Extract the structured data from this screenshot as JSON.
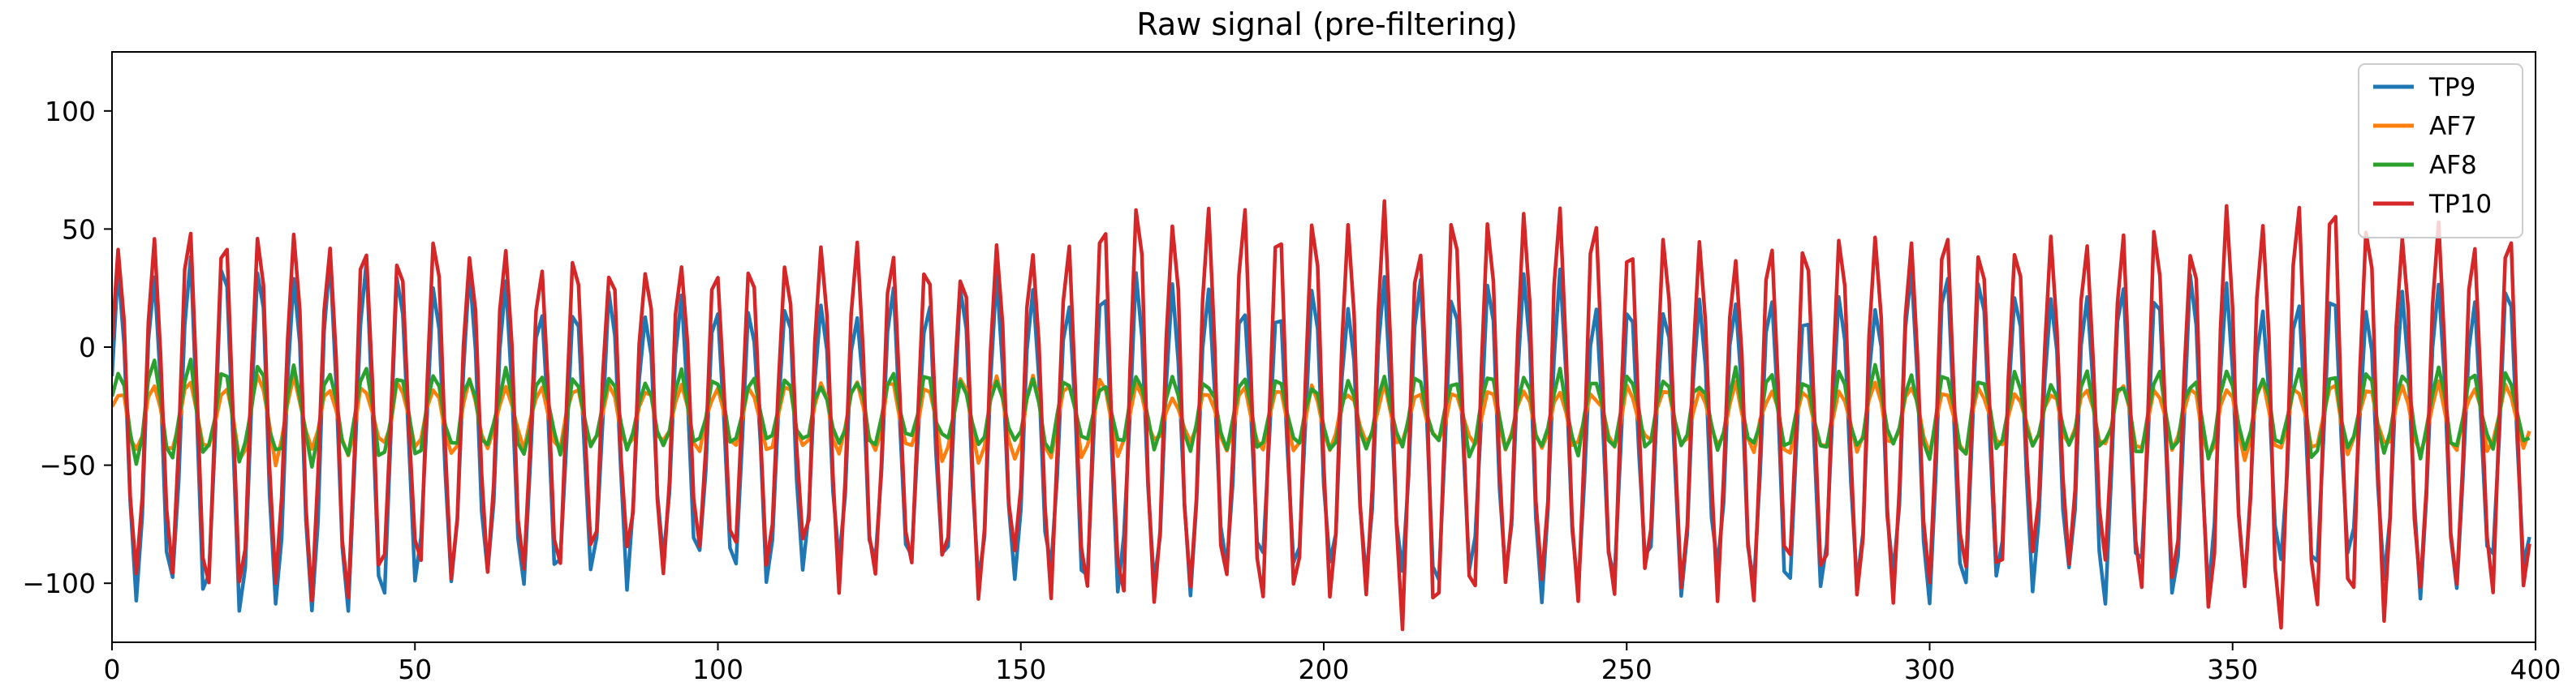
{
  "chart_data": {
    "type": "line",
    "title": "Raw signal (pre-filtering)",
    "xlabel": "",
    "ylabel": "",
    "xlim": [
      0,
      400
    ],
    "ylim": [
      -125,
      125
    ],
    "xticks": [
      0,
      50,
      100,
      150,
      200,
      250,
      300,
      350,
      400
    ],
    "yticks": [
      -100,
      -50,
      0,
      50,
      100
    ],
    "grid": false,
    "legend_position": "top-right",
    "x": {
      "start": 0,
      "end": 399,
      "step": 1
    },
    "series": [
      {
        "name": "TP9",
        "color": "#1f77b4",
        "period_samples": 5.8,
        "mean": -38,
        "amplitude_envelope": [
          [
            0,
            66
          ],
          [
            30,
            75
          ],
          [
            60,
            62
          ],
          [
            100,
            55
          ],
          [
            150,
            62
          ],
          [
            170,
            64
          ],
          [
            200,
            60
          ],
          [
            230,
            64
          ],
          [
            260,
            60
          ],
          [
            300,
            66
          ],
          [
            330,
            63
          ],
          [
            360,
            60
          ],
          [
            400,
            64
          ]
        ]
      },
      {
        "name": "AF7",
        "color": "#ff7f0e",
        "period_samples": 5.8,
        "mean": -30,
        "amplitude_envelope": [
          [
            0,
            14
          ],
          [
            30,
            17
          ],
          [
            60,
            13
          ],
          [
            100,
            12
          ],
          [
            150,
            18
          ],
          [
            170,
            13
          ],
          [
            200,
            11
          ],
          [
            230,
            12
          ],
          [
            260,
            12
          ],
          [
            300,
            13
          ],
          [
            330,
            12
          ],
          [
            360,
            16
          ],
          [
            400,
            12
          ]
        ]
      },
      {
        "name": "AF8",
        "color": "#2ca02c",
        "period_samples": 5.8,
        "mean": -28,
        "amplitude_envelope": [
          [
            0,
            18
          ],
          [
            30,
            20
          ],
          [
            60,
            16
          ],
          [
            100,
            14
          ],
          [
            150,
            14
          ],
          [
            170,
            16
          ],
          [
            200,
            14
          ],
          [
            230,
            16
          ],
          [
            260,
            16
          ],
          [
            300,
            16
          ],
          [
            330,
            15
          ],
          [
            360,
            17
          ],
          [
            400,
            16
          ]
        ]
      },
      {
        "name": "TP10",
        "color": "#d62728",
        "period_samples": 5.8,
        "mean": -27,
        "amplitude_envelope": [
          [
            0,
            70
          ],
          [
            30,
            72
          ],
          [
            60,
            68
          ],
          [
            100,
            64
          ],
          [
            150,
            70
          ],
          [
            170,
            84
          ],
          [
            200,
            78
          ],
          [
            230,
            86
          ],
          [
            260,
            72
          ],
          [
            300,
            74
          ],
          [
            330,
            72
          ],
          [
            360,
            88
          ],
          [
            400,
            78
          ]
        ]
      }
    ]
  }
}
